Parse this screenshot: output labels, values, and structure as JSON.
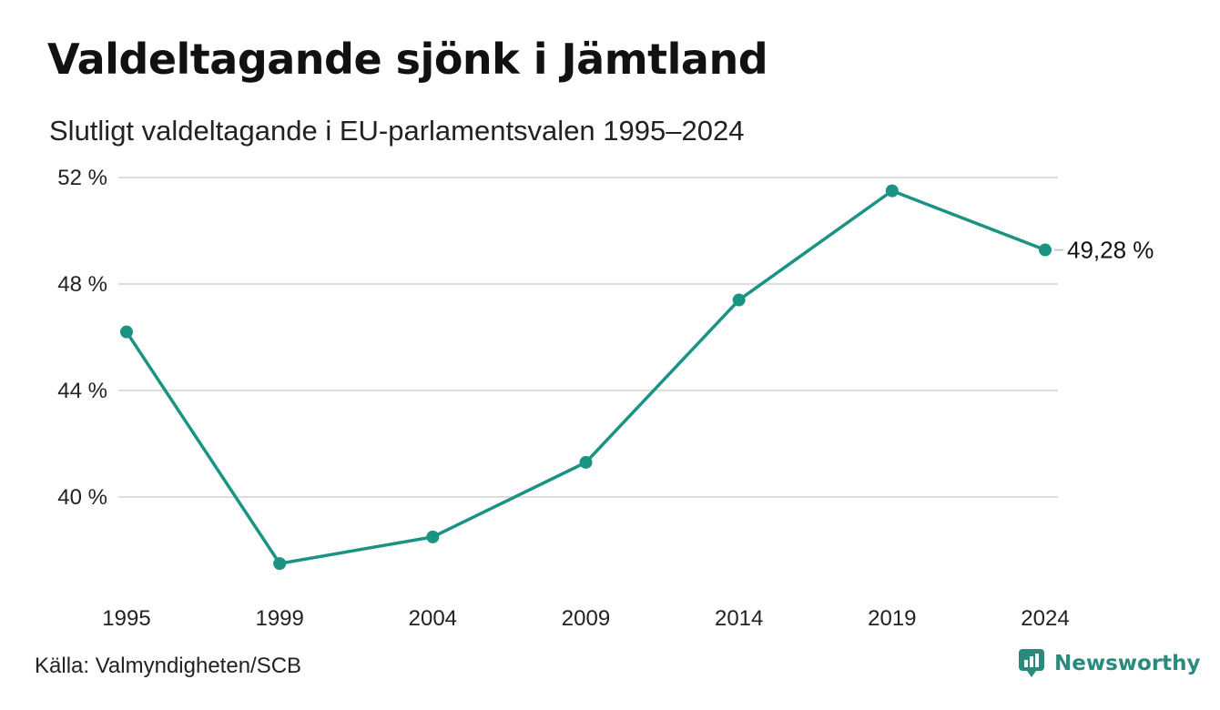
{
  "header": {
    "title": "Valdeltagande sjönk i Jämtland",
    "subtitle": "Slutligt valdeltagande i EU-parlamentsvalen 1995–2024"
  },
  "footer": {
    "source": "Källa: Valmyndigheten/SCB",
    "brand": "Newsworthy",
    "brand_icon": "newsworthy-logo-icon"
  },
  "colors": {
    "line": "#1a9383",
    "grid": "#dddddd",
    "brand": "#2a8a7e"
  },
  "chart_data": {
    "type": "line",
    "title": "Valdeltagande sjönk i Jämtland",
    "subtitle": "Slutligt valdeltagande i EU-parlamentsvalen 1995–2024",
    "xlabel": "",
    "ylabel": "",
    "categories": [
      "1995",
      "1999",
      "2004",
      "2009",
      "2014",
      "2019",
      "2024"
    ],
    "series": [
      {
        "values": [
          46.2,
          37.5,
          38.5,
          41.3,
          47.4,
          51.5,
          49.28
        ]
      }
    ],
    "ylim": [
      36,
      52
    ],
    "yticks": [
      40,
      44,
      48,
      52
    ],
    "ytick_labels": [
      "40 %",
      "44 %",
      "48 %",
      "52 %"
    ],
    "end_label": "49,28 %",
    "grid": true,
    "legend": "none"
  }
}
